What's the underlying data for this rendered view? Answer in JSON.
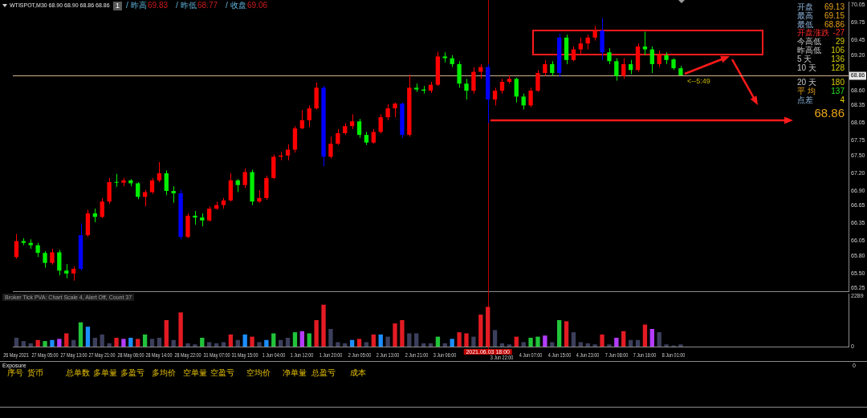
{
  "chart_data": [
    {
      "type": "candlestick",
      "title": "WTISPOT,M30 68.90 68.90 68.86 68.86",
      "categories": [
        "26 May 2021",
        null,
        null,
        null,
        "27 May 05:00",
        null,
        null,
        null,
        "27 May 13:00",
        null,
        null,
        null,
        "27 May 21:00",
        null,
        null,
        null,
        "28 May 06:00",
        null,
        null,
        null,
        "28 May 14:00",
        null,
        null,
        null,
        "28 May 22:00",
        null,
        null,
        null,
        "31 May 07:00",
        null,
        null,
        null,
        "31 May 15:00",
        null,
        null,
        null,
        "1 Jun 04:00",
        null,
        null,
        null,
        "1 Jun 12:00",
        null,
        null,
        null,
        "1 Jun 20:00",
        null,
        null,
        null,
        "2 Jun 05:00",
        null,
        null,
        null,
        "2 Jun 13:00",
        null,
        null,
        null,
        "2 Jun 21:00",
        null,
        null,
        null,
        "3 Jun 06:00",
        null,
        null,
        null,
        null,
        null,
        "2021.06.03 18:00",
        null,
        "3 Jun 22:00",
        null,
        null,
        null,
        "4 Jun 07:00",
        null,
        null,
        null,
        "4 Jun 15:00",
        null,
        null,
        null,
        "4 Jun 23:00",
        null,
        null,
        null,
        "7 Jun 08:00",
        null,
        null,
        null,
        "7 Jun 16:00",
        null,
        null,
        null,
        "8 Jun 01:00",
        null,
        null,
        null,
        null,
        null,
        null,
        null,
        null,
        null,
        null,
        null,
        null,
        null,
        null,
        null,
        null,
        null,
        null,
        null,
        null,
        null,
        null,
        null,
        null
      ],
      "ohlc": [
        [
          65.78,
          66.17,
          65.75,
          66.05
        ],
        [
          66.05,
          66.1,
          65.98,
          66.02
        ],
        [
          66.02,
          66.08,
          65.92,
          65.98
        ],
        [
          65.98,
          66.02,
          65.78,
          65.85
        ],
        [
          65.85,
          65.88,
          65.6,
          65.68
        ],
        [
          65.68,
          65.92,
          65.65,
          65.86
        ],
        [
          65.86,
          65.9,
          65.47,
          65.55
        ],
        [
          65.55,
          65.66,
          65.42,
          65.5
        ],
        [
          65.5,
          65.62,
          65.38,
          65.58
        ],
        [
          65.58,
          66.35,
          65.55,
          66.15
        ],
        [
          66.15,
          66.58,
          66.12,
          66.52
        ],
        [
          66.52,
          66.6,
          66.37,
          66.46
        ],
        [
          66.46,
          66.78,
          66.44,
          66.72
        ],
        [
          66.72,
          67.12,
          66.68,
          67.05
        ],
        [
          67.05,
          67.19,
          66.97,
          67.04
        ],
        [
          67.04,
          67.12,
          66.98,
          67.08
        ],
        [
          67.08,
          67.1,
          66.98,
          67.03
        ],
        [
          67.03,
          67.05,
          66.76,
          66.8
        ],
        [
          66.8,
          66.92,
          66.64,
          66.88
        ],
        [
          66.88,
          67.12,
          66.85,
          67.08
        ],
        [
          67.08,
          67.39,
          67.05,
          67.2
        ],
        [
          67.2,
          67.25,
          66.83,
          66.9
        ],
        [
          66.9,
          66.98,
          66.7,
          66.86
        ],
        [
          66.86,
          66.92,
          66.08,
          66.12
        ],
        [
          66.12,
          66.52,
          66.1,
          66.48
        ],
        [
          66.48,
          66.56,
          66.33,
          66.45
        ],
        [
          66.45,
          66.52,
          66.3,
          66.4
        ],
        [
          66.4,
          66.64,
          66.38,
          66.6
        ],
        [
          66.6,
          66.72,
          66.58,
          66.66
        ],
        [
          66.66,
          66.78,
          66.6,
          66.74
        ],
        [
          66.74,
          67.2,
          66.72,
          67.08
        ],
        [
          67.08,
          67.1,
          66.88,
          67.0
        ],
        [
          67.0,
          67.28,
          66.95,
          67.22
        ],
        [
          67.22,
          67.26,
          66.66,
          66.72
        ],
        [
          66.72,
          66.91,
          66.7,
          66.78
        ],
        [
          66.78,
          67.16,
          66.75,
          67.12
        ],
        [
          67.12,
          67.52,
          67.1,
          67.48
        ],
        [
          67.48,
          67.56,
          67.42,
          67.5
        ],
        [
          67.5,
          67.69,
          67.42,
          67.6
        ],
        [
          67.6,
          68.0,
          67.55,
          67.96
        ],
        [
          67.96,
          68.27,
          67.95,
          68.1
        ],
        [
          68.1,
          68.35,
          67.98,
          68.3
        ],
        [
          68.3,
          68.74,
          68.28,
          68.65
        ],
        [
          68.65,
          68.68,
          67.32,
          67.48
        ],
        [
          67.48,
          67.82,
          67.45,
          67.7
        ],
        [
          67.7,
          67.95,
          67.68,
          67.88
        ],
        [
          67.88,
          68.05,
          67.85,
          68.0
        ],
        [
          68.0,
          68.2,
          67.95,
          68.08
        ],
        [
          68.08,
          68.12,
          67.8,
          67.85
        ],
        [
          67.85,
          67.9,
          67.68,
          67.72
        ],
        [
          67.72,
          67.95,
          67.7,
          67.9
        ],
        [
          67.9,
          68.2,
          67.88,
          68.15
        ],
        [
          68.15,
          68.37,
          68.1,
          68.3
        ],
        [
          68.3,
          68.4,
          68.15,
          68.38
        ],
        [
          68.38,
          68.4,
          67.8,
          67.85
        ],
        [
          67.85,
          68.87,
          67.82,
          68.65
        ],
        [
          68.65,
          68.72,
          68.58,
          68.62
        ],
        [
          68.62,
          68.68,
          68.55,
          68.6
        ],
        [
          68.6,
          68.75,
          68.56,
          68.7
        ],
        [
          68.7,
          69.26,
          68.68,
          69.18
        ],
        [
          69.18,
          69.25,
          69.08,
          69.15
        ],
        [
          69.15,
          69.2,
          69.0,
          69.05
        ],
        [
          69.05,
          69.1,
          68.65,
          68.72
        ],
        [
          68.72,
          68.8,
          68.45,
          68.6
        ],
        [
          68.6,
          69.0,
          68.55,
          68.92
        ],
        [
          68.92,
          69.05,
          68.8,
          69.0
        ],
        [
          69.0,
          69.05,
          68.05,
          68.45
        ],
        [
          68.45,
          68.65,
          68.35,
          68.6
        ],
        [
          68.6,
          68.8,
          68.55,
          68.75
        ],
        [
          68.75,
          68.86,
          68.72,
          68.8
        ],
        [
          68.8,
          68.82,
          68.4,
          68.5
        ],
        [
          68.5,
          68.55,
          68.28,
          68.35
        ],
        [
          68.35,
          68.65,
          68.32,
          68.6
        ],
        [
          68.6,
          68.95,
          68.58,
          68.9
        ],
        [
          68.9,
          69.12,
          68.85,
          69.05
        ],
        [
          69.05,
          69.1,
          68.85,
          68.9
        ],
        [
          68.9,
          69.57,
          68.83,
          69.5
        ],
        [
          69.5,
          69.55,
          69.05,
          69.12
        ],
        [
          69.12,
          69.35,
          69.1,
          69.3
        ],
        [
          69.3,
          69.5,
          69.22,
          69.4
        ],
        [
          69.4,
          69.55,
          69.3,
          69.5
        ],
        [
          69.5,
          69.7,
          69.45,
          69.62
        ],
        [
          69.62,
          69.83,
          69.12,
          69.25
        ],
        [
          69.25,
          69.32,
          69.05,
          69.1
        ],
        [
          69.1,
          69.15,
          68.77,
          68.85
        ],
        [
          68.85,
          69.15,
          68.8,
          69.05
        ],
        [
          69.05,
          69.12,
          68.88,
          68.95
        ],
        [
          68.95,
          69.4,
          68.92,
          69.35
        ],
        [
          69.35,
          69.6,
          69.2,
          69.3
        ],
        [
          69.3,
          69.35,
          68.9,
          69.05
        ],
        [
          69.05,
          69.28,
          69.0,
          69.2
        ],
        [
          69.2,
          69.25,
          69.05,
          69.12
        ],
        [
          69.13,
          69.15,
          68.95,
          68.98
        ],
        [
          68.98,
          69.02,
          68.86,
          68.86
        ],
        null,
        null,
        null,
        null,
        null,
        null,
        null,
        null,
        null,
        null,
        null,
        null,
        null,
        null,
        null,
        null,
        null,
        null,
        null,
        null,
        null,
        null,
        null
      ],
      "colors": [
        "#ff0000",
        "#00ee00",
        "#00ee00",
        "#00ee00",
        "#00ee00",
        "#ff0000",
        "#00ee00",
        "#00ee00",
        "#ff0000",
        "#0000ff",
        "#ff0000",
        "#00ee00",
        "#ff0000",
        "#ff0000",
        "#00ee00",
        "#ff0000",
        "#00ee00",
        "#00ee00",
        "#ff0000",
        "#ff0000",
        "#ff0000",
        "#00ee00",
        "#00ee00",
        "#0000ff",
        "#ff0000",
        "#00ee00",
        "#00ee00",
        "#ff0000",
        "#ff0000",
        "#ff0000",
        "#ff0000",
        "#00ee00",
        "#ff0000",
        "#00ee00",
        "#ff0000",
        "#ff0000",
        "#ff0000",
        "#ff0000",
        "#ff0000",
        "#ff0000",
        "#ff0000",
        "#ff0000",
        "#ff0000",
        "#0000ff",
        "#ff0000",
        "#ff0000",
        "#ff0000",
        "#ff0000",
        "#00ee00",
        "#00ee00",
        "#ff0000",
        "#ff0000",
        "#ff0000",
        "#ff0000",
        "#0000ff",
        "#ff0000",
        "#00ee00",
        "#00ee00",
        "#ff0000",
        "#ff0000",
        "#00ee00",
        "#00ee00",
        "#00ee00",
        "#00ee00",
        "#ff0000",
        "#ff0000",
        "#0000ff",
        "#ff0000",
        "#ff0000",
        "#ff0000",
        "#00ee00",
        "#00ee00",
        "#ff0000",
        "#ff0000",
        "#ff0000",
        "#00ee00",
        "#0000ff",
        "#00ee00",
        "#ff0000",
        "#ff0000",
        "#ff0000",
        "#ff0000",
        "#0000ff",
        "#00ee00",
        "#00ee00",
        "#ff0000",
        "#00ee00",
        "#ff0000",
        "#00ee00",
        "#00ee00",
        "#ff0000",
        "#00ee00",
        "#00ee00",
        "#00ee00",
        null,
        null,
        null,
        null,
        null,
        null,
        null,
        null,
        null,
        null,
        null,
        null,
        null,
        null,
        null,
        null,
        null,
        null,
        null,
        null,
        null,
        null,
        null
      ],
      "ylim": [
        65.2,
        70.11
      ],
      "yticks": [
        70.05,
        69.75,
        69.45,
        {
          "value": 69.2,
          "label": "69.20"
        },
        {
          "value": 68.6,
          "label": "68.60"
        },
        68.35,
        68.05,
        67.75,
        {
          "value": 67.5,
          "label": "67.50"
        },
        {
          "value": 67.2,
          "label": "67.20"
        },
        {
          "value": 66.9,
          "label": "66.90"
        },
        66.65,
        66.35,
        66.05,
        {
          "value": 65.8,
          "label": "65.80"
        },
        {
          "value": 65.5,
          "label": "65.50"
        },
        65.25
      ],
      "tick_labels": "y",
      "ref_lines": [
        {
          "axis": "y",
          "value": 68.86,
          "label": "68.86",
          "color": "#d2b48c"
        },
        {
          "axis": "x",
          "value": "2021.06.03 18:00",
          "color": "#c00000"
        }
      ],
      "annotations": [
        "1",
        "/ 昨高",
        "69.83",
        "/ 昨低",
        "68.77",
        "/ 收盘",
        "69.06",
        "开盘",
        "69.13",
        "最高",
        "69.15",
        "最低",
        "68.86",
        "开盘涨跌",
        "-27",
        "今高低",
        "29",
        "昨高低",
        "106",
        "5 天",
        "136",
        "10 天",
        "128",
        "20 天",
        "180",
        "平 均",
        "137",
        "点差",
        "4",
        "68.86",
        "<--5:49"
      ]
    },
    {
      "type": "bar",
      "title": "Broker Tick PVA: Chart Scale 4, Alert Off, Count 37",
      "categories": [
        "26 May 2021",
        null,
        null,
        null,
        "27 May 05:00",
        null,
        null,
        null,
        "27 May 13:00",
        null,
        null,
        null,
        "27 May 21:00",
        null,
        null,
        null,
        "28 May 06:00",
        null,
        null,
        null,
        "28 May 14:00",
        null,
        null,
        null,
        "28 May 22:00",
        null,
        null,
        null,
        "31 May 07:00",
        null,
        null,
        null,
        "31 May 15:00",
        null,
        null,
        null,
        "1 Jun 04:00",
        null,
        null,
        null,
        "1 Jun 12:00",
        null,
        null,
        null,
        "1 Jun 20:00",
        null,
        null,
        null,
        "2 Jun 05:00",
        null,
        null,
        null,
        "2 Jun 13:00",
        null,
        null,
        null,
        "2 Jun 21:00",
        null,
        null,
        null,
        "3 Jun 06:00",
        null,
        null,
        null,
        null,
        null,
        "2021.06.03 18:00",
        null,
        "3 Jun 22:00",
        null,
        null,
        null,
        "4 Jun 07:00",
        null,
        null,
        null,
        "4 Jun 15:00",
        null,
        null,
        null,
        "4 Jun 23:00",
        null,
        null,
        null,
        "7 Jun 08:00",
        null,
        null,
        null,
        "7 Jun 16:00",
        null,
        null,
        null,
        "8 Jun 01:00",
        null,
        null,
        null,
        null,
        null,
        null,
        null,
        null,
        null,
        null,
        null,
        null,
        null,
        null,
        null,
        null,
        null,
        null,
        null,
        null,
        null,
        null,
        null,
        null
      ],
      "values": [
        400,
        250,
        150,
        300,
        250,
        300,
        350,
        600,
        300,
        1100,
        900,
        400,
        550,
        150,
        400,
        350,
        400,
        350,
        550,
        350,
        400,
        1200,
        300,
        1550,
        150,
        100,
        400,
        200,
        150,
        200,
        550,
        300,
        550,
        450,
        200,
        300,
        600,
        300,
        400,
        650,
        700,
        600,
        1200,
        1900,
        800,
        200,
        150,
        300,
        350,
        200,
        550,
        550,
        450,
        1050,
        1200,
        600,
        600,
        150,
        150,
        450,
        150,
        350,
        650,
        600,
        450,
        1450,
        1800,
        750,
        150,
        100,
        450,
        200,
        400,
        450,
        500,
        200,
        1200,
        1150,
        650,
        200,
        150,
        100,
        550,
        100,
        400,
        700,
        300,
        300,
        1000,
        800,
        650,
        100,
        50,
        100,
        null,
        null,
        null,
        null,
        null,
        null,
        null,
        null,
        null,
        null,
        null,
        null,
        null,
        null,
        null,
        null,
        null,
        null,
        null,
        null,
        null,
        null,
        null
      ],
      "colors": [
        "#3c3f5c",
        "#3c3f5c",
        "#3c3f5c",
        "#e31b23",
        "#21c43a",
        "#1c8fff",
        "#b43cff",
        "#e31b23",
        "#3c3f5c",
        "#21c43a",
        "#1c8fff",
        "#3c3f5c",
        "#3c3f5c",
        "#3c3f5c",
        "#e31b23",
        "#b43cff",
        "#1c8fff",
        "#e31b23",
        "#21c43a",
        "#3c3f5c",
        "#3c3f5c",
        "#e31b23",
        "#3c3f5c",
        "#e31b23",
        "#3c3f5c",
        "#3c3f5c",
        "#21c43a",
        "#3c3f5c",
        "#3c3f5c",
        "#3c3f5c",
        "#e31b23",
        "#3c3f5c",
        "#1c8fff",
        "#e31b23",
        "#3c3f5c",
        "#1c8fff",
        "#21c43a",
        "#3c3f5c",
        "#3c3f5c",
        "#21c43a",
        "#b43cff",
        "#21c43a",
        "#e31b23",
        "#e31b23",
        "#3c3f5c",
        "#3c3f5c",
        "#3c3f5c",
        "#1c8fff",
        "#e31b23",
        "#3c3f5c",
        "#e31b23",
        "#1c8fff",
        "#3c3f5c",
        "#e31b23",
        "#e31b23",
        "#3c3f5c",
        "#3c3f5c",
        "#3c3f5c",
        "#3c3f5c",
        "#21c43a",
        "#3c3f5c",
        "#1c8fff",
        "#e31b23",
        "#e31b23",
        "#3c3f5c",
        "#e31b23",
        "#e31b23",
        "#3c3f5c",
        "#3c3f5c",
        "#3c3f5c",
        "#e31b23",
        "#3c3f5c",
        "#21c43a",
        "#21c43a",
        "#b43cff",
        "#3c3f5c",
        "#21c43a",
        "#e31b23",
        "#3c3f5c",
        "#3c3f5c",
        "#3c3f5c",
        "#3c3f5c",
        "#e31b23",
        "#3c3f5c",
        "#b43cff",
        "#e31b23",
        "#3c3f5c",
        "#3c3f5c",
        "#e31b23",
        "#b43cff",
        "#3c3f5c",
        "#3c3f5c",
        "#3c3f5c",
        "#3c3f5c",
        null,
        null,
        null,
        null,
        null,
        null,
        null,
        null,
        null,
        null,
        null,
        null,
        null,
        null,
        null,
        null,
        null,
        null,
        null,
        null,
        null,
        null,
        null
      ],
      "ylim": [
        0,
        2400
      ],
      "yticks": [
        0,
        2289
      ],
      "ref_lines": [
        {
          "axis": "x",
          "value": "2021.06.03 18:00",
          "color": "#c00000"
        }
      ]
    },
    {
      "type": "other",
      "title": "Exposure",
      "annotations": [
        "序号",
        "货币",
        "总单数",
        "多单量",
        "多盈亏",
        "多均价",
        "空单量",
        "空盈亏",
        "空均价",
        "净单量",
        "总盈亏",
        "成本",
        "0"
      ]
    }
  ]
}
